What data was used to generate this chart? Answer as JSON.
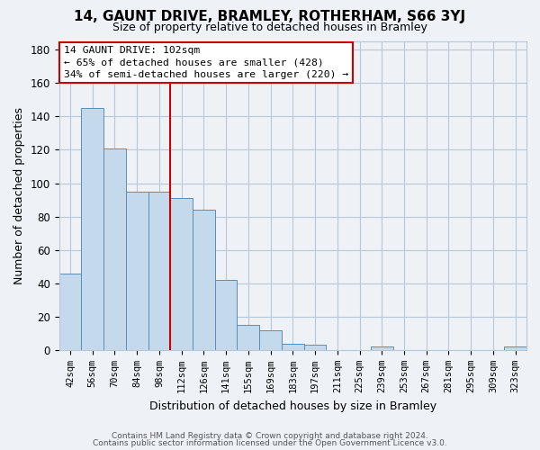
{
  "title": "14, GAUNT DRIVE, BRAMLEY, ROTHERHAM, S66 3YJ",
  "subtitle": "Size of property relative to detached houses in Bramley",
  "xlabel": "Distribution of detached houses by size in Bramley",
  "ylabel": "Number of detached properties",
  "categories": [
    "42sqm",
    "56sqm",
    "70sqm",
    "84sqm",
    "98sqm",
    "112sqm",
    "126sqm",
    "141sqm",
    "155sqm",
    "169sqm",
    "183sqm",
    "197sqm",
    "211sqm",
    "225sqm",
    "239sqm",
    "253sqm",
    "267sqm",
    "281sqm",
    "295sqm",
    "309sqm",
    "323sqm"
  ],
  "values": [
    46,
    145,
    121,
    95,
    95,
    91,
    84,
    42,
    15,
    12,
    4,
    3,
    0,
    0,
    2,
    0,
    0,
    0,
    0,
    0,
    2
  ],
  "bar_color": "#c5d9ed",
  "bar_edge_color": "#5b8db8",
  "grid_color": "#b8c8d8",
  "background_color": "#eef2f7",
  "annotation_text": "14 GAUNT DRIVE: 102sqm\n← 65% of detached houses are smaller (428)\n34% of semi-detached houses are larger (220) →",
  "annotation_box_color": "#ffffff",
  "annotation_box_edge": "#cc0000",
  "ylim": [
    0,
    185
  ],
  "yticks": [
    0,
    20,
    40,
    60,
    80,
    100,
    120,
    140,
    160,
    180
  ],
  "footer1": "Contains HM Land Registry data © Crown copyright and database right 2024.",
  "footer2": "Contains public sector information licensed under the Open Government Licence v3.0."
}
